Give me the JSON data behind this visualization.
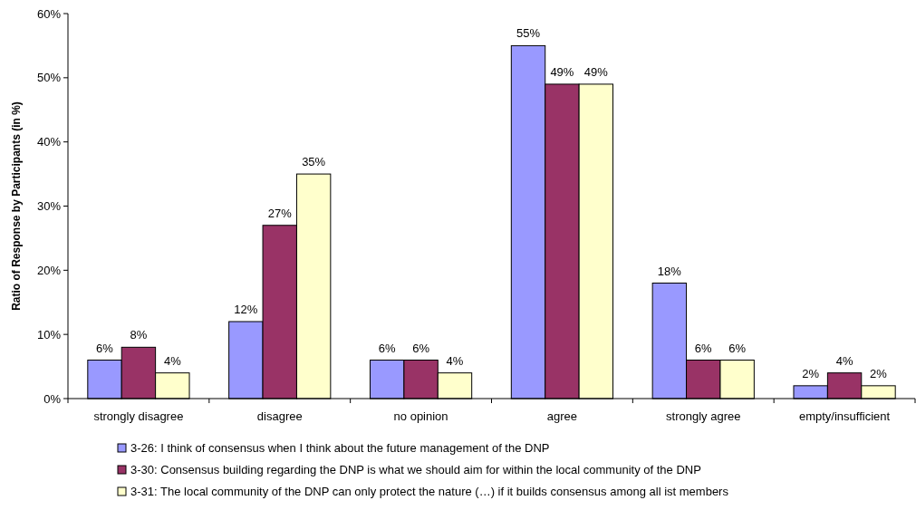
{
  "chart_data": {
    "type": "bar",
    "ylabel": "Ratio of Response by Participants (in %)",
    "categories": [
      "strongly disagree",
      "disagree",
      "no opinion",
      "agree",
      "strongly agree",
      "empty/insufficient"
    ],
    "series": [
      {
        "name": "3-26: I think of consensus when I think about the future management of the DNP",
        "color": "#9999ff",
        "values": [
          6,
          12,
          6,
          55,
          18,
          2
        ],
        "value_labels": [
          "6%",
          "12%",
          "6%",
          "55%",
          "18%",
          "2%"
        ]
      },
      {
        "name": "3-30: Consensus building regarding the DNP is what we should aim for within the local community of the DNP",
        "color": "#993366",
        "values": [
          8,
          27,
          6,
          49,
          6,
          4
        ],
        "value_labels": [
          "8%",
          "27%",
          "6%",
          "49%",
          "6%",
          "4%"
        ]
      },
      {
        "name": "3-31: The local community of the DNP can only protect the nature (…) if it builds consensus among all ist members",
        "color": "#ffffcc",
        "values": [
          4,
          35,
          4,
          49,
          6,
          2
        ],
        "value_labels": [
          "4%",
          "35%",
          "4%",
          "49%",
          "6%",
          "2%"
        ]
      }
    ],
    "ylim": [
      0,
      60
    ],
    "yticks": [
      {
        "value": 0,
        "label": "0%"
      },
      {
        "value": 10,
        "label": "10%"
      },
      {
        "value": 20,
        "label": "20%"
      },
      {
        "value": 30,
        "label": "30%"
      },
      {
        "value": 40,
        "label": "40%"
      },
      {
        "value": 50,
        "label": "50%"
      },
      {
        "value": 60,
        "label": "60%"
      }
    ],
    "grid": false,
    "legend": "bottom"
  }
}
